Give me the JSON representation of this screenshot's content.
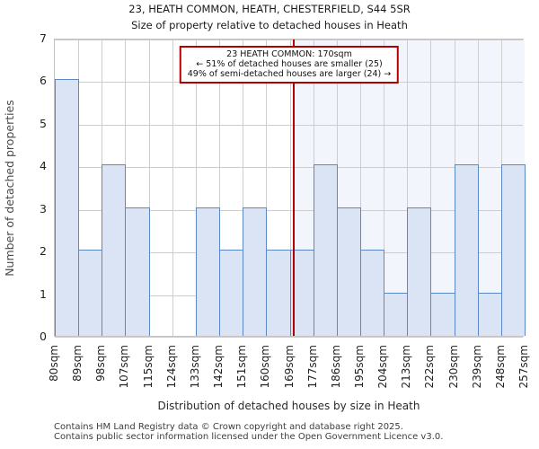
{
  "header": {
    "title": "23, HEATH COMMON, HEATH, CHESTERFIELD, S44 5SR",
    "subtitle": "Size of property relative to detached houses in Heath"
  },
  "chart_data": {
    "type": "bar",
    "title": "23, HEATH COMMON, HEATH, CHESTERFIELD, S44 5SR",
    "subtitle": "Size of property relative to detached houses in Heath",
    "xlabel": "Distribution of detached houses by size in Heath",
    "ylabel": "Number of detached properties",
    "bin_labels": [
      "80sqm",
      "89sqm",
      "98sqm",
      "107sqm",
      "115sqm",
      "124sqm",
      "133sqm",
      "142sqm",
      "151sqm",
      "160sqm",
      "169sqm",
      "177sqm",
      "186sqm",
      "195sqm",
      "204sqm",
      "213sqm",
      "222sqm",
      "230sqm",
      "239sqm",
      "248sqm",
      "257sqm"
    ],
    "bin_edges_sqm": [
      80,
      89,
      98,
      107,
      115,
      124,
      133,
      142,
      151,
      160,
      169,
      177,
      186,
      195,
      204,
      213,
      222,
      230,
      239,
      248,
      257
    ],
    "values": [
      6,
      2,
      4,
      3,
      0,
      0,
      3,
      2,
      3,
      2,
      2,
      4,
      3,
      2,
      1,
      3,
      1,
      4,
      1,
      4
    ],
    "x_range_sqm": [
      80,
      257
    ],
    "ylim": [
      0,
      7
    ],
    "yticks": [
      0,
      1,
      2,
      3,
      4,
      5,
      6,
      7
    ],
    "grid": true,
    "legend": "none",
    "marker": {
      "value_sqm": 170,
      "line1": "23 HEATH COMMON: 170sqm",
      "line2": "← 51% of detached houses are smaller (25)",
      "line3": "49% of semi-detached houses are larger (24) →"
    },
    "colors": {
      "bar_fill": "#dbe4f4",
      "bar_border": "#5b88c7",
      "marker_red": "#b00000",
      "shade_right_of_marker": "#f2f5fb",
      "gridline": "#cdcdcd",
      "frame": "#c2c2c2"
    }
  },
  "footer": {
    "line1": "Contains HM Land Registry data © Crown copyright and database right 2025.",
    "line2": "Contains public sector information licensed under the Open Government Licence v3.0."
  }
}
